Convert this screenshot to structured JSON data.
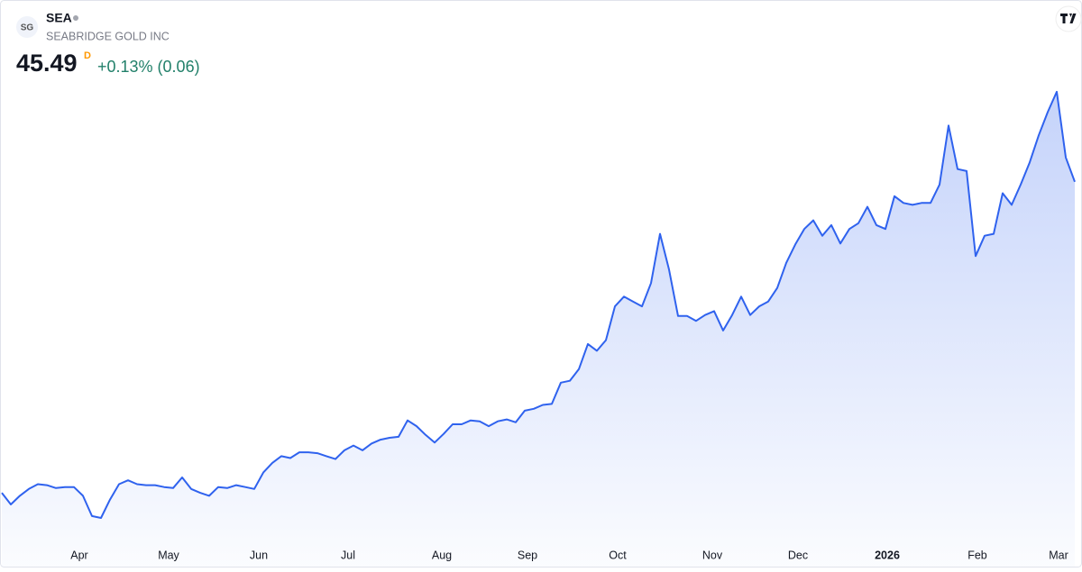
{
  "header": {
    "logo": "SG",
    "symbol": "SEA",
    "name": "SEABRIDGE GOLD INC",
    "price": "45.49",
    "interval": "D",
    "change": "+0.13% (0.06)"
  },
  "chart_data": {
    "type": "area",
    "color": "#2f62ee",
    "values": [
      13.3,
      12.1,
      13.0,
      13.7,
      14.2,
      14.1,
      13.8,
      13.9,
      13.9,
      13.0,
      10.9,
      10.7,
      12.6,
      14.2,
      14.6,
      14.2,
      14.1,
      14.1,
      13.9,
      13.8,
      14.9,
      13.7,
      13.3,
      13.0,
      13.9,
      13.8,
      14.1,
      13.9,
      13.7,
      15.4,
      16.4,
      17.1,
      16.9,
      17.5,
      17.5,
      17.4,
      17.1,
      16.8,
      17.7,
      18.2,
      17.7,
      18.4,
      18.8,
      19.0,
      19.1,
      20.8,
      20.2,
      19.3,
      18.5,
      19.4,
      20.4,
      20.4,
      20.8,
      20.7,
      20.2,
      20.7,
      20.9,
      20.6,
      21.8,
      22.0,
      22.4,
      22.5,
      24.7,
      24.9,
      26.1,
      28.7,
      28.0,
      29.1,
      32.6,
      33.6,
      33.1,
      32.6,
      35.0,
      40.1,
      36.4,
      31.6,
      31.6,
      31.1,
      31.7,
      32.1,
      30.1,
      31.7,
      33.6,
      31.7,
      32.6,
      33.1,
      34.5,
      37.1,
      39.0,
      40.6,
      41.5,
      39.9,
      41.0,
      39.1,
      40.6,
      41.2,
      42.9,
      41.0,
      40.6,
      44.0,
      43.3,
      43.1,
      43.3,
      43.3,
      45.2,
      51.3,
      46.8,
      46.6,
      37.8,
      39.9,
      40.1,
      44.3,
      43.1,
      45.2,
      47.5,
      50.3,
      52.7,
      54.8,
      48.0,
      45.49
    ],
    "xlim": [
      0,
      119
    ],
    "ylim": [
      8,
      56
    ],
    "xticks": [
      {
        "value": 8.6,
        "label": "Apr"
      },
      {
        "value": 18.5,
        "label": "May"
      },
      {
        "value": 28.5,
        "label": "Jun"
      },
      {
        "value": 38.4,
        "label": "Jul"
      },
      {
        "value": 48.8,
        "label": "Aug"
      },
      {
        "value": 58.3,
        "label": "Sep"
      },
      {
        "value": 68.3,
        "label": "Oct"
      },
      {
        "value": 78.8,
        "label": "Nov"
      },
      {
        "value": 88.3,
        "label": "Dec"
      },
      {
        "value": 98.2,
        "label": "2026"
      },
      {
        "value": 108.2,
        "label": "Feb"
      },
      {
        "value": 117.2,
        "label": "Mar"
      }
    ]
  }
}
